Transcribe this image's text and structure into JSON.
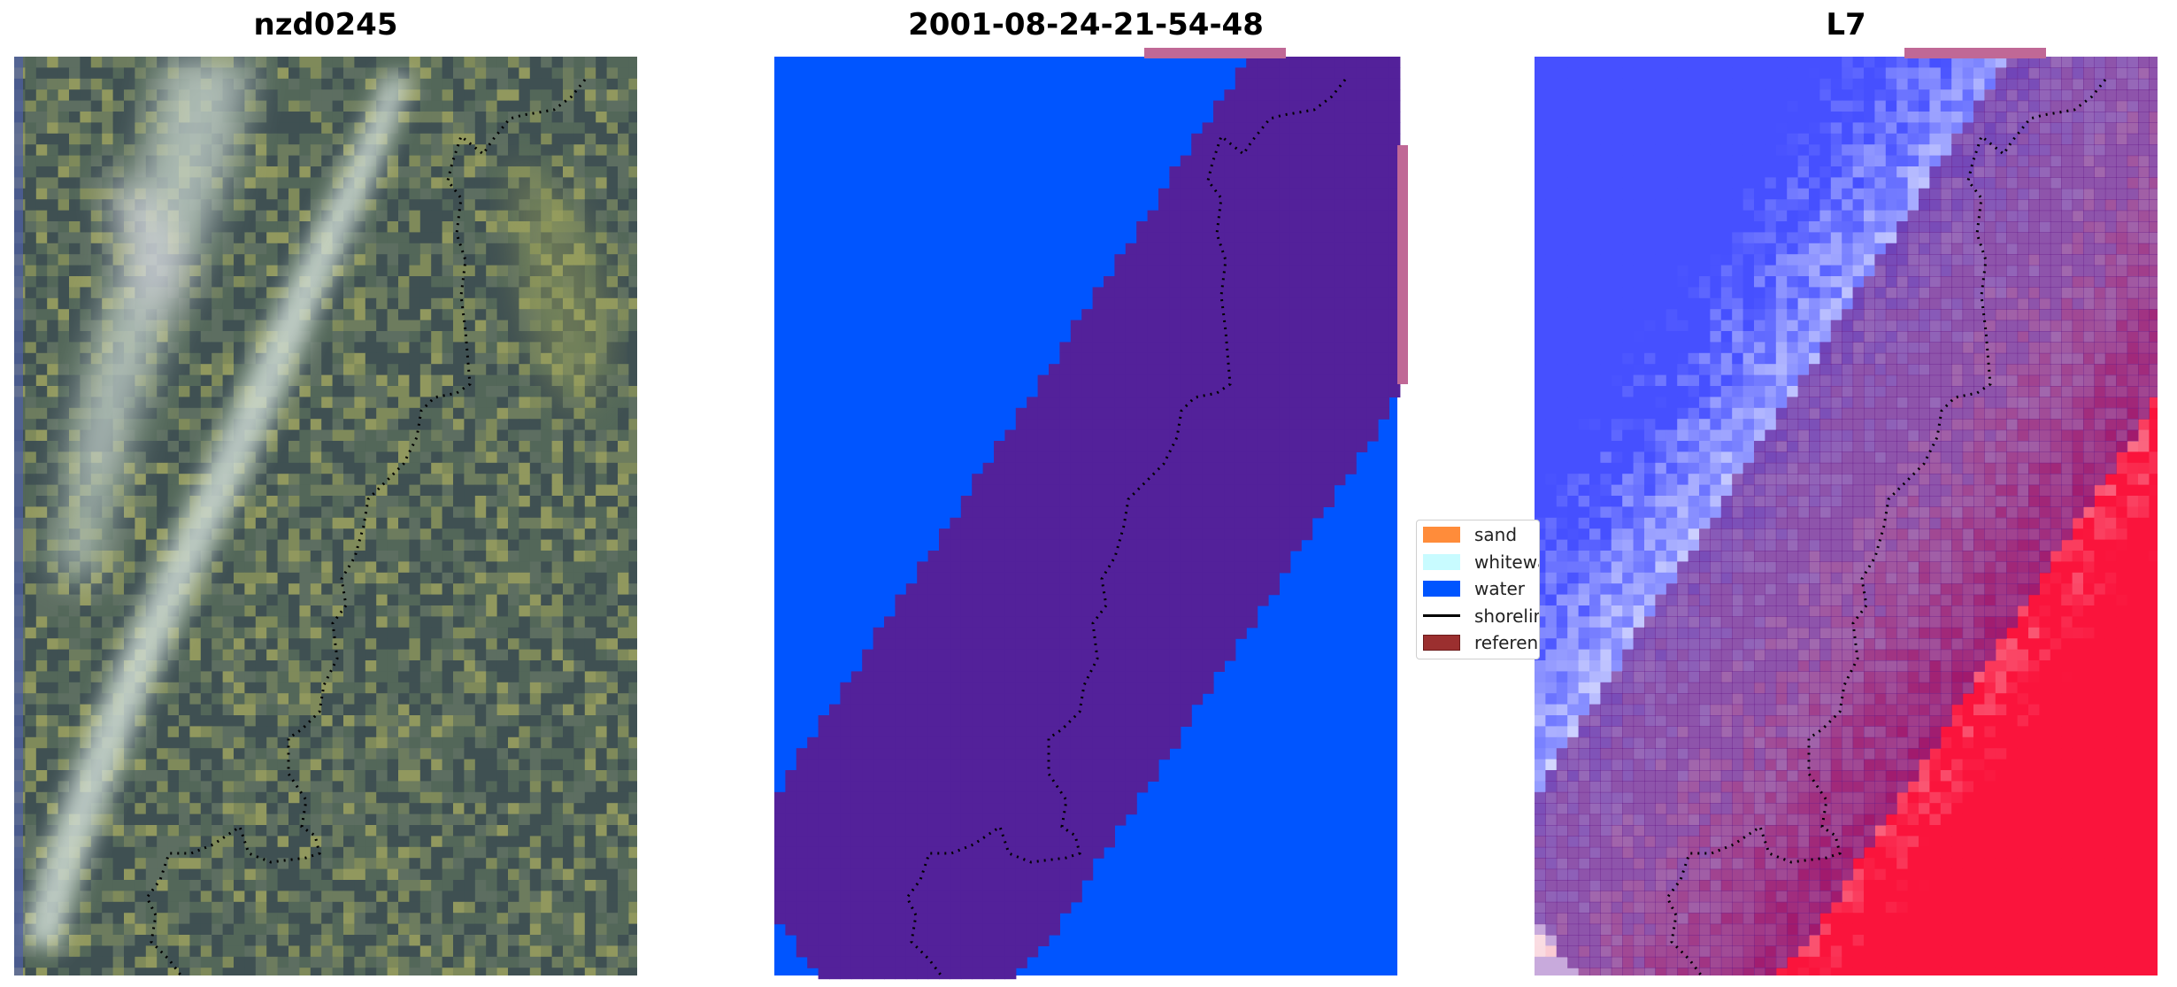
{
  "panels": [
    {
      "title": "nzd0245"
    },
    {
      "title": "2001-08-24-21-54-48"
    },
    {
      "title": "L7"
    }
  ],
  "legend": {
    "items": [
      {
        "label": "sand",
        "color": "#ff8c3a",
        "kind": "patch"
      },
      {
        "label": "whitewater",
        "color": "#c8fbff",
        "kind": "patch"
      },
      {
        "label": "water",
        "color": "#0055ff",
        "kind": "patch"
      },
      {
        "label": "shoreline",
        "color": "#000000",
        "kind": "line"
      },
      {
        "label": "reference",
        "color": "#9b2f2f",
        "kind": "patch"
      }
    ]
  },
  "colors": {
    "water_class": "#0055ff",
    "overlay": "#53219a",
    "reference_strip": "#c06896",
    "shoreline": "#000000",
    "rgb_background": "#4a5a60",
    "index_low": "#4444ff",
    "index_high": "#e0103a"
  }
}
